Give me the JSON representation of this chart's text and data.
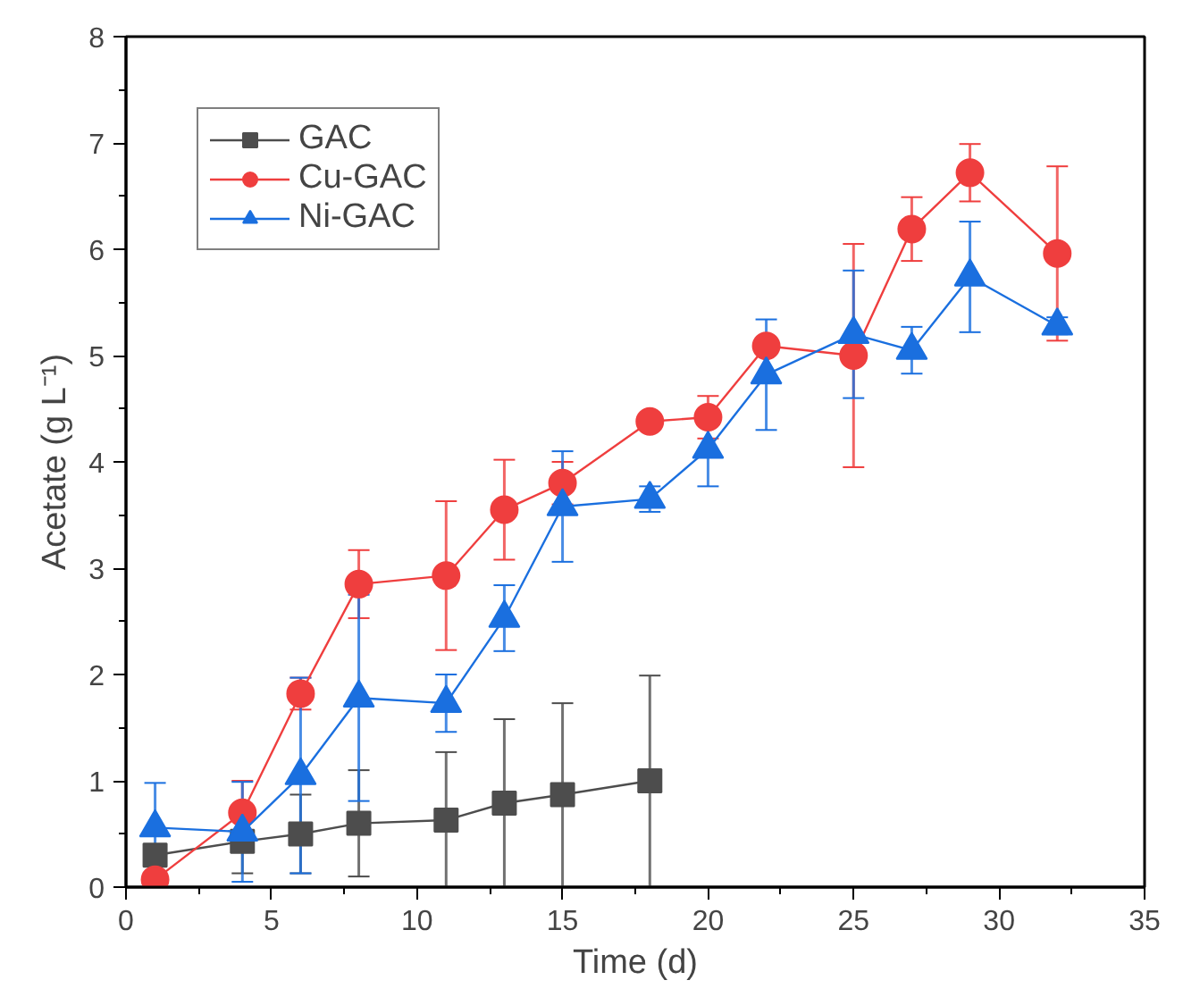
{
  "chart_data": {
    "type": "line",
    "xlabel": "Time (d)",
    "ylabel": "Acetate (g L⁻¹)",
    "xlim": [
      0,
      35
    ],
    "xticks": [
      0,
      5,
      10,
      15,
      20,
      25,
      30,
      35
    ],
    "ylim": [
      0,
      8
    ],
    "yticks": [
      0,
      1,
      2,
      3,
      4,
      5,
      6,
      7,
      8
    ],
    "grid": false,
    "legend": "top left",
    "series": [
      {
        "name": "GAC",
        "color": "#4d4d4d",
        "marker": "square",
        "x": [
          1,
          4,
          6,
          8,
          11,
          13,
          15,
          18
        ],
        "values": [
          0.3,
          0.43,
          0.5,
          0.6,
          0.63,
          0.79,
          0.87,
          1.0
        ],
        "errors": [
          0.1,
          0.3,
          0.37,
          0.5,
          [
            0,
            1.27
          ],
          [
            0,
            1.58
          ],
          [
            0,
            1.73
          ],
          [
            0,
            1.99
          ]
        ]
      },
      {
        "name": "Cu-GAC",
        "color": "#ef3e3e",
        "marker": "circle",
        "x": [
          1,
          4,
          6,
          8,
          11,
          13,
          15,
          18,
          20,
          22,
          25,
          27,
          29,
          32
        ],
        "values": [
          0.07,
          0.7,
          1.82,
          2.85,
          2.93,
          3.55,
          3.8,
          4.38,
          4.42,
          5.09,
          5.0,
          6.19,
          6.72,
          5.96
        ],
        "errors": [
          0.05,
          0.3,
          0.15,
          0.32,
          0.7,
          0.47,
          0.2,
          0.05,
          0.2,
          0.05,
          1.05,
          0.3,
          0.27,
          0.82
        ]
      },
      {
        "name": "Ni-GAC",
        "color": "#1a6fdf",
        "marker": "triangle",
        "x": [
          1,
          4,
          6,
          8,
          11,
          13,
          15,
          18,
          20,
          22,
          25,
          27,
          29,
          32
        ],
        "values": [
          0.56,
          0.52,
          1.05,
          1.78,
          1.73,
          2.53,
          3.58,
          3.65,
          4.12,
          4.82,
          5.2,
          5.05,
          5.74,
          5.28
        ],
        "errors": [
          0.42,
          0.47,
          0.92,
          0.97,
          0.27,
          0.31,
          0.52,
          0.12,
          0.35,
          0.52,
          0.6,
          0.22,
          0.52,
          0.08
        ]
      }
    ]
  }
}
